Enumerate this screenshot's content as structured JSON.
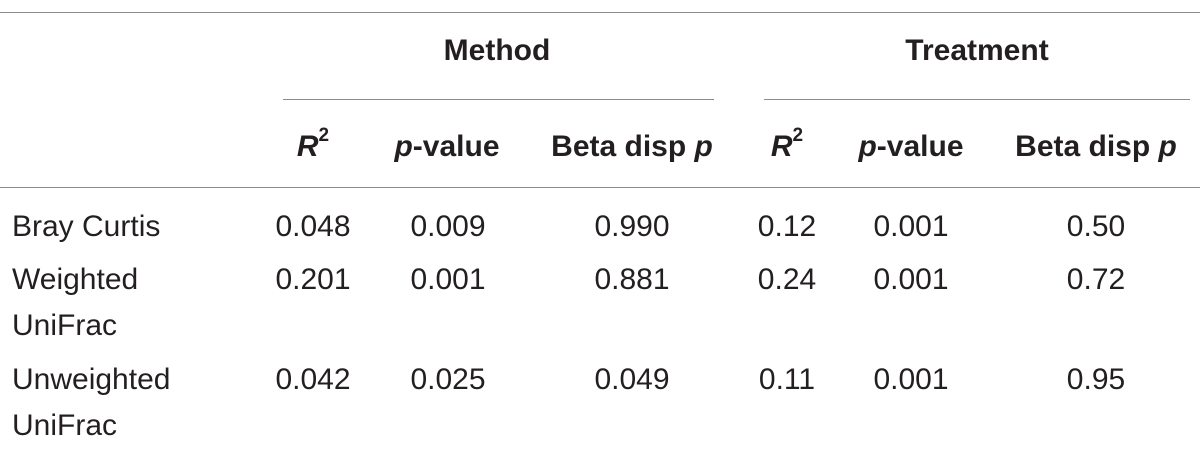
{
  "table": {
    "group_headers": [
      "Method",
      "Treatment"
    ],
    "columns": [
      {
        "main": "R",
        "sup": "2",
        "suffix": ""
      },
      {
        "main": "p",
        "sup": "",
        "suffix": "-value"
      },
      {
        "main": "Beta disp ",
        "sup": "",
        "suffix": "p"
      },
      {
        "main": "R",
        "sup": "2",
        "suffix": ""
      },
      {
        "main": "p",
        "sup": "",
        "suffix": "-value"
      },
      {
        "main": "Beta disp ",
        "sup": "",
        "suffix": "p"
      }
    ],
    "rows": [
      {
        "label": [
          "Bray Curtis"
        ],
        "values": [
          "0.048",
          "0.009",
          "0.990",
          "0.12",
          "0.001",
          "0.50"
        ]
      },
      {
        "label": [
          "Weighted",
          "UniFrac"
        ],
        "values": [
          "0.201",
          "0.001",
          "0.881",
          "0.24",
          "0.001",
          "0.72"
        ]
      },
      {
        "label": [
          "Unweighted",
          "UniFrac"
        ],
        "values": [
          "0.042",
          "0.025",
          "0.049",
          "0.11",
          "0.001",
          "0.95"
        ]
      }
    ]
  }
}
